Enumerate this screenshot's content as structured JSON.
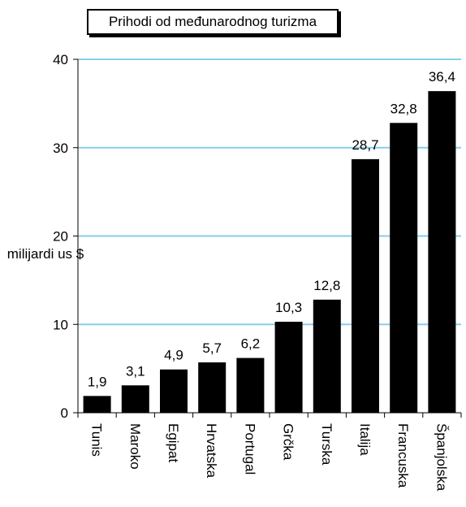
{
  "chart_data": {
    "type": "bar",
    "title": "Prihodi od međunarodnog turizma",
    "ylabel": "milijardi us $",
    "xlabel": "",
    "categories": [
      "Tunis",
      "Maroko",
      "Egipat",
      "Hrvatska",
      "Portugal",
      "Grčka",
      "Turska",
      "Italija",
      "Francuska",
      "Španjolska"
    ],
    "values": [
      1.9,
      3.1,
      4.9,
      5.7,
      6.2,
      10.3,
      12.8,
      28.7,
      32.8,
      36.4
    ],
    "data_labels": [
      "1,9",
      "3,1",
      "4,9",
      "5,7",
      "6,2",
      "10,3",
      "12,8",
      "28,7",
      "32,8",
      "36,4"
    ],
    "ylim": [
      0,
      40
    ],
    "yticks": [
      0,
      10,
      20,
      30,
      40
    ],
    "grid": true,
    "bar_color": "#000000",
    "grid_color": "#87ceeb"
  }
}
